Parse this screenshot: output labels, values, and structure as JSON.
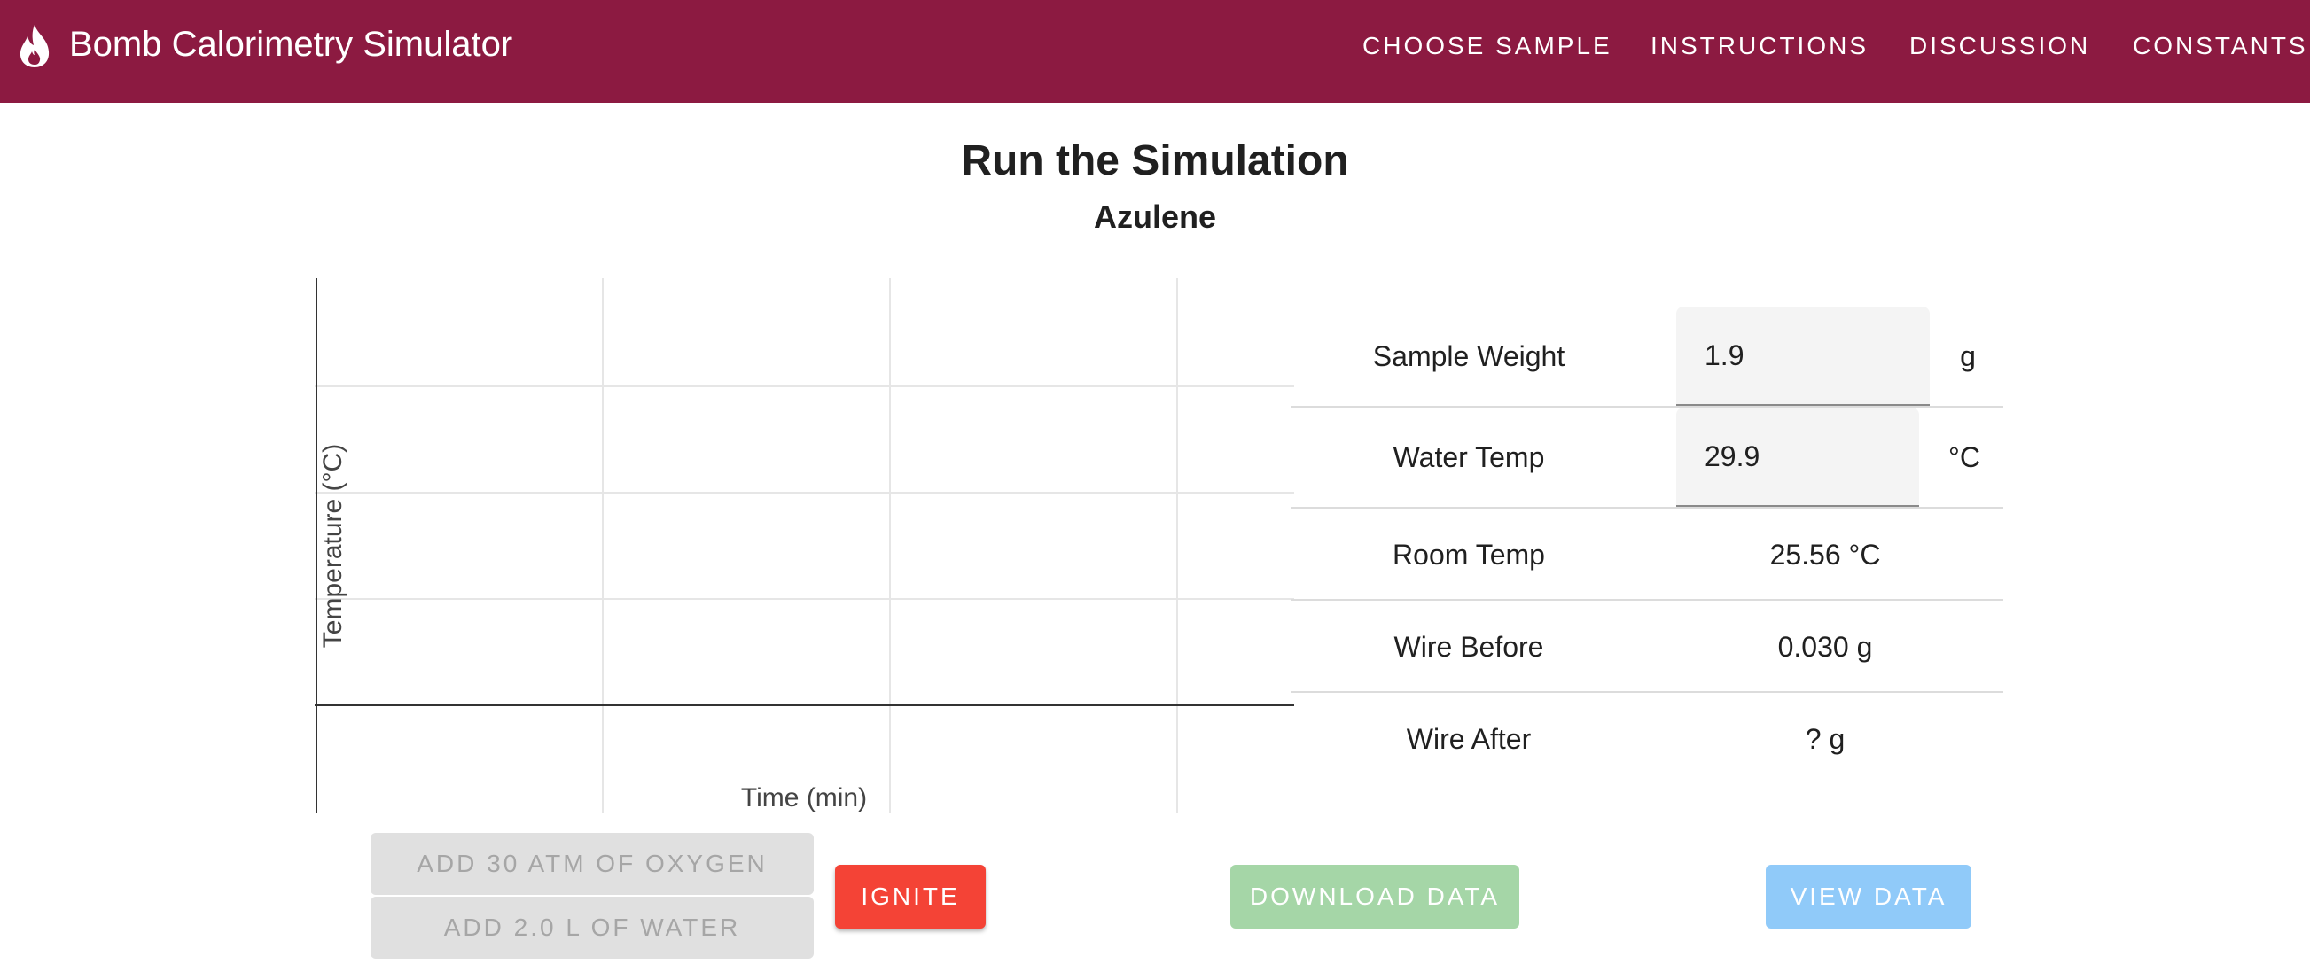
{
  "app": {
    "title": "Bomb Calorimetry Simulator",
    "icon": "flame-icon",
    "bar_color": "#8c1a41"
  },
  "nav": [
    {
      "label": "CHOOSE SAMPLE"
    },
    {
      "label": "INSTRUCTIONS"
    },
    {
      "label": "DISCUSSION"
    },
    {
      "label": "CONSTANTS"
    }
  ],
  "page": {
    "title": "Run the Simulation",
    "sample_name": "Azulene"
  },
  "chart_data": {
    "type": "line",
    "xlabel": "Time (min)",
    "ylabel": "Temperature (°C)",
    "series": [],
    "grid": true
  },
  "table": {
    "sample_weight": {
      "label": "Sample Weight",
      "value": "1.9",
      "unit": "g"
    },
    "water_temp": {
      "label": "Water Temp",
      "value": "29.9",
      "unit": "°C"
    },
    "room_temp": {
      "label": "Room Temp",
      "value": "25.56 °C"
    },
    "wire_before": {
      "label": "Wire Before",
      "value": "0.030 g"
    },
    "wire_after": {
      "label": "Wire After",
      "value": "? g"
    }
  },
  "buttons": {
    "add_oxygen": "ADD 30 ATM OF OXYGEN",
    "add_water": "ADD 2.0 L OF WATER",
    "ignite": "IGNITE",
    "download": "DOWNLOAD DATA",
    "view": "VIEW DATA"
  },
  "colors": {
    "ignite": "#f44336",
    "download": "#a5d6a7",
    "view": "#90caf9",
    "disabled": "#e0e0e0"
  }
}
